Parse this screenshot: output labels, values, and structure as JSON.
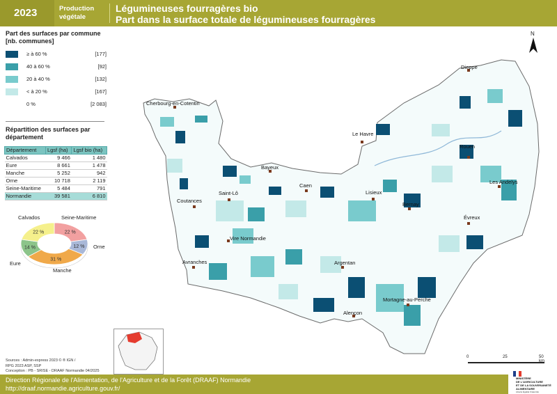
{
  "header": {
    "year": "2023",
    "category_line1": "Production",
    "category_line2": "végétale",
    "title_line1": "Légumineuses fourragères bio",
    "title_line2": "Part dans la surface totale de légumineuses fourragères"
  },
  "legend": {
    "title_line1": "Part des surfaces par commune",
    "title_line2": "[nb. communes]",
    "classes": [
      {
        "label": "≥ à 60 %",
        "count": "[177]",
        "color": "#0b4f73"
      },
      {
        "label": "40 à 60 %",
        "count": "[92]",
        "color": "#3a9fa9"
      },
      {
        "label": "20 à 40 %",
        "count": "[132]",
        "color": "#79cbcd"
      },
      {
        "label": "< à 20 %",
        "count": "[167]",
        "color": "#c3e9e8"
      },
      {
        "label": "0 %",
        "count": "[2 083]",
        "color": "#ffffff"
      }
    ]
  },
  "repartition": {
    "title_line1": "Répartition des surfaces par",
    "title_line2": "département",
    "headers": [
      "Département",
      "Lgsf  (ha)",
      "Lgsf bio  (ha)"
    ],
    "rows": [
      [
        "Calvados",
        "9 466",
        "1 480"
      ],
      [
        "Eure",
        "8 661",
        "1 478"
      ],
      [
        "Manche",
        "5 252",
        "942"
      ],
      [
        "Orne",
        "10 718",
        "2 119"
      ],
      [
        "Seine-Maritime",
        "5 484",
        "791"
      ]
    ],
    "total": [
      "Normandie",
      "39 581",
      "6 810"
    ]
  },
  "chart_data": {
    "type": "pie",
    "categories": [
      "Calvados",
      "Seine-Maritime",
      "Orne",
      "Manche",
      "Eure"
    ],
    "values": [
      22,
      12,
      31,
      14,
      22
    ],
    "labels": [
      "22 %",
      "12 %",
      "31 %",
      "14 %",
      "22 %"
    ],
    "colors": [
      "#f2a0a0",
      "#a9b8d8",
      "#f0a94a",
      "#8cc48a",
      "#f5f08c"
    ]
  },
  "cities": [
    "Dieppe",
    "Cherbourg-en-Cotentin",
    "Le Havre",
    "Rouen",
    "Bayeux",
    "Caen",
    "Lisieux",
    "Saint-Lô",
    "Coutances",
    "Les Andelys",
    "Bernay",
    "Évreux",
    "Vire Normandie",
    "Avranches",
    "Argentan",
    "Mortagne-au-Perche",
    "Alençon"
  ],
  "north_label": "N",
  "scale": {
    "ticks": [
      "0",
      "25",
      "50 km"
    ]
  },
  "sources": {
    "line1": "Sources : Admin-express 2023 © ® IGN /",
    "line2": "RPG 2023 ASP, SSP",
    "line3": "Conception : PB - SRISE - DRAAF Normandie 04/2025"
  },
  "footer": {
    "line1": "Direction Régionale de l'Alimentation, de l'Agriculture et de la Forêt (DRAAF) Normandie",
    "line2": "http://draaf.normandie.agriculture.gouv.fr/"
  },
  "ministry": {
    "line1": "MINISTÈRE",
    "line2": "DE L'AGRICULTURE",
    "line3": "ET DE LA SOUVERAINETÉ",
    "line4": "ALIMENTAIRE",
    "line5": "Liberté",
    "line6": "Égalité",
    "line7": "Fraternité"
  }
}
